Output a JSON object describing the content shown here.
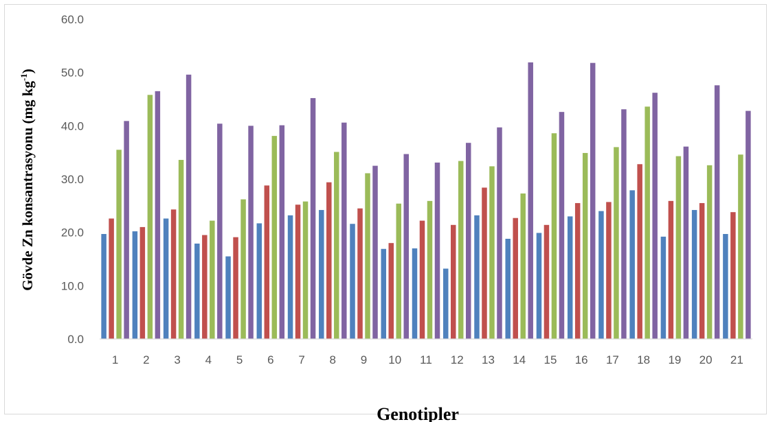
{
  "chart_data": {
    "type": "bar",
    "title": "",
    "xlabel": "Genotipler",
    "ylabel": {
      "prefix": "Gövde  Zn konsantrasyonu (mg  kg",
      "superscript": "-1",
      "suffix": ")"
    },
    "ylim": [
      0,
      60
    ],
    "yticks": [
      "0.0",
      "10.0",
      "20.0",
      "30.0",
      "40.0",
      "50.0",
      "60.0"
    ],
    "grid": false,
    "legend": "none",
    "categories": [
      "1",
      "2",
      "3",
      "4",
      "5",
      "6",
      "7",
      "8",
      "9",
      "10",
      "11",
      "12",
      "13",
      "14",
      "15",
      "16",
      "17",
      "18",
      "19",
      "20",
      "21"
    ],
    "series": [
      {
        "color": "#4f81bd",
        "values": [
          19.7,
          20.2,
          22.6,
          17.9,
          15.5,
          21.7,
          23.2,
          24.2,
          21.6,
          16.9,
          17.0,
          13.2,
          23.2,
          18.8,
          19.9,
          23.0,
          24.0,
          27.9,
          19.2,
          24.2,
          19.7
        ]
      },
      {
        "color": "#c0504d",
        "values": [
          22.6,
          21.0,
          24.3,
          19.5,
          19.1,
          28.8,
          25.2,
          29.4,
          24.5,
          18.0,
          22.2,
          21.4,
          28.4,
          22.7,
          21.4,
          25.5,
          25.7,
          32.8,
          25.9,
          25.5,
          23.8
        ]
      },
      {
        "color": "#9bbb59",
        "values": [
          35.5,
          45.8,
          33.6,
          22.2,
          26.2,
          38.1,
          25.8,
          35.1,
          31.1,
          25.4,
          25.9,
          33.4,
          32.4,
          27.3,
          38.6,
          34.9,
          36.0,
          43.6,
          34.3,
          32.6,
          34.6
        ]
      },
      {
        "color": "#8064a2",
        "values": [
          40.9,
          46.5,
          49.6,
          40.4,
          40.0,
          40.1,
          45.2,
          40.6,
          32.5,
          34.7,
          33.1,
          36.8,
          39.7,
          51.9,
          42.6,
          51.8,
          43.1,
          46.2,
          36.1,
          47.6,
          42.8
        ]
      }
    ]
  }
}
